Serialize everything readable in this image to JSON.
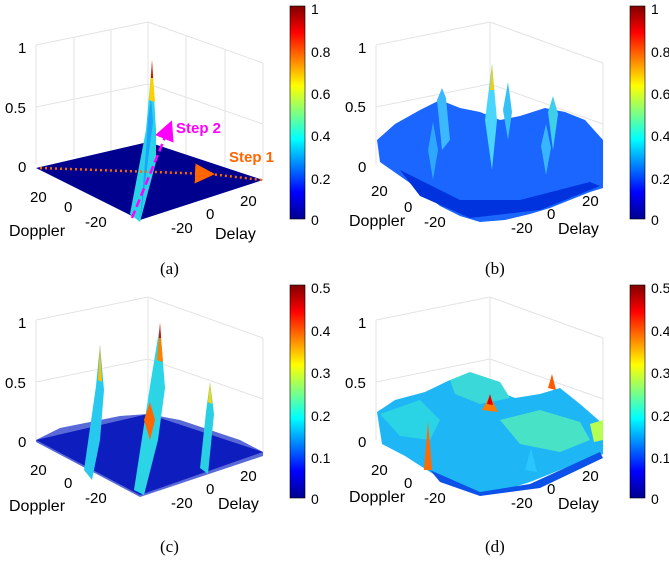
{
  "chart_data": [
    {
      "type": "surface3d",
      "caption": "(a)",
      "xlabel": "Delay",
      "ylabel": "Doppler",
      "zlim": [
        0,
        1
      ],
      "z_ticks": [
        "0",
        "0.5",
        "1"
      ],
      "delay_ticks": [
        "-20",
        "0",
        "20"
      ],
      "doppler_ticks": [
        "20",
        "0",
        "-20"
      ],
      "colorbar": {
        "min": 0,
        "max": 1,
        "ticks": [
          "0",
          "0.2",
          "0.4",
          "0.6",
          "0.8",
          "1"
        ]
      },
      "colormap": "jet",
      "peak_value": 1,
      "annotations": [
        {
          "text": "Step 1",
          "color": "#ff6600"
        },
        {
          "text": "Step 2",
          "color": "#ff00ff"
        }
      ]
    },
    {
      "type": "surface3d",
      "caption": "(b)",
      "xlabel": "Delay",
      "ylabel": "Doppler",
      "zlim": [
        0,
        1
      ],
      "z_ticks": [
        "0",
        "0.5",
        "1"
      ],
      "delay_ticks": [
        "-20",
        "0",
        "20"
      ],
      "doppler_ticks": [
        "20",
        "0",
        "-20"
      ],
      "colorbar": {
        "min": 0,
        "max": 1,
        "ticks": [
          "0",
          "0.2",
          "0.4",
          "0.6",
          "0.8",
          "1"
        ]
      },
      "colormap": "jet",
      "peak_value": 1
    },
    {
      "type": "surface3d",
      "caption": "(c)",
      "xlabel": "Delay",
      "ylabel": "Doppler",
      "zlim": [
        0,
        1
      ],
      "z_ticks": [
        "0",
        "0.5",
        "1"
      ],
      "delay_ticks": [
        "-20",
        "0",
        "20"
      ],
      "doppler_ticks": [
        "20",
        "0",
        "-20"
      ],
      "colorbar": {
        "min": 0,
        "max": 0.5,
        "ticks": [
          "0",
          "0.1",
          "0.2",
          "0.3",
          "0.4",
          "0.5"
        ]
      },
      "colormap": "jet",
      "peak_value": 0.5
    },
    {
      "type": "surface3d",
      "caption": "(d)",
      "xlabel": "Delay",
      "ylabel": "Doppler",
      "zlim": [
        0,
        1
      ],
      "z_ticks": [
        "0",
        "0.5",
        "1"
      ],
      "delay_ticks": [
        "-20",
        "0",
        "20"
      ],
      "doppler_ticks": [
        "20",
        "0",
        "-20"
      ],
      "colorbar": {
        "min": 0,
        "max": 0.5,
        "ticks": [
          "0",
          "0.1",
          "0.2",
          "0.3",
          "0.4",
          "0.5"
        ]
      },
      "colormap": "jet",
      "peak_value": 0.5
    }
  ]
}
